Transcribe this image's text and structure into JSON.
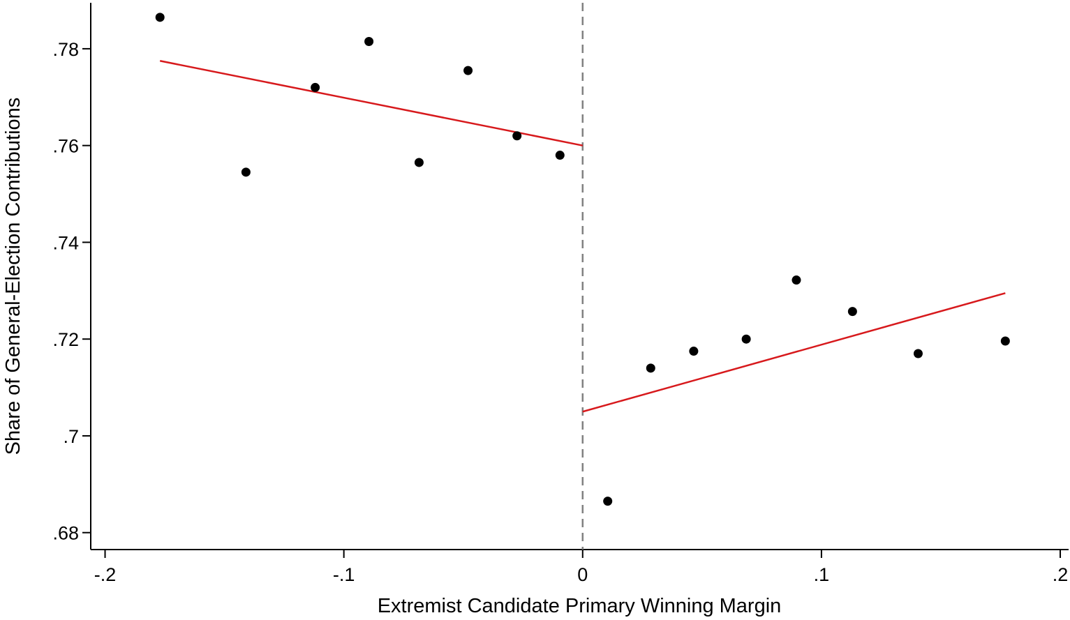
{
  "chart_data": {
    "type": "scatter",
    "xlabel": "Extremist Candidate Primary Winning Margin",
    "ylabel": "Share of General-Election Contributions",
    "xlim": [
      -0.206,
      0.2035
    ],
    "ylim": [
      0.6765,
      0.7895
    ],
    "x_ticks": [
      {
        "value": -0.2,
        "label": "-.2"
      },
      {
        "value": -0.1,
        "label": "-.1"
      },
      {
        "value": 0,
        "label": "0"
      },
      {
        "value": 0.1,
        "label": ".1"
      },
      {
        "value": 0.2,
        "label": ".2"
      }
    ],
    "y_ticks": [
      {
        "value": 0.68,
        "label": ".68"
      },
      {
        "value": 0.7,
        "label": ".7"
      },
      {
        "value": 0.72,
        "label": ".72"
      },
      {
        "value": 0.74,
        "label": ".74"
      },
      {
        "value": 0.76,
        "label": ".76"
      },
      {
        "value": 0.78,
        "label": ".78"
      }
    ],
    "points": [
      {
        "x": -0.177,
        "y": 0.7865
      },
      {
        "x": -0.141,
        "y": 0.7545
      },
      {
        "x": -0.112,
        "y": 0.772
      },
      {
        "x": -0.0895,
        "y": 0.7815
      },
      {
        "x": -0.0685,
        "y": 0.7565
      },
      {
        "x": -0.048,
        "y": 0.7755
      },
      {
        "x": -0.0275,
        "y": 0.762
      },
      {
        "x": -0.0095,
        "y": 0.758
      },
      {
        "x": 0.0105,
        "y": 0.6865
      },
      {
        "x": 0.0285,
        "y": 0.714
      },
      {
        "x": 0.0465,
        "y": 0.7175
      },
      {
        "x": 0.0685,
        "y": 0.72
      },
      {
        "x": 0.0895,
        "y": 0.7322
      },
      {
        "x": 0.113,
        "y": 0.7257
      },
      {
        "x": 0.1405,
        "y": 0.717
      },
      {
        "x": 0.177,
        "y": 0.7196
      }
    ],
    "fit_lines": [
      {
        "x": [
          -0.177,
          0
        ],
        "y": [
          0.7775,
          0.76
        ]
      },
      {
        "x": [
          0,
          0.177
        ],
        "y": [
          0.705,
          0.7295
        ]
      }
    ],
    "cutoff_x": 0,
    "colors": {
      "points": "#000000",
      "fit": "#d7191c",
      "cutoff": "#808080",
      "axis": "#000000"
    },
    "grid": false,
    "legend": "none"
  }
}
